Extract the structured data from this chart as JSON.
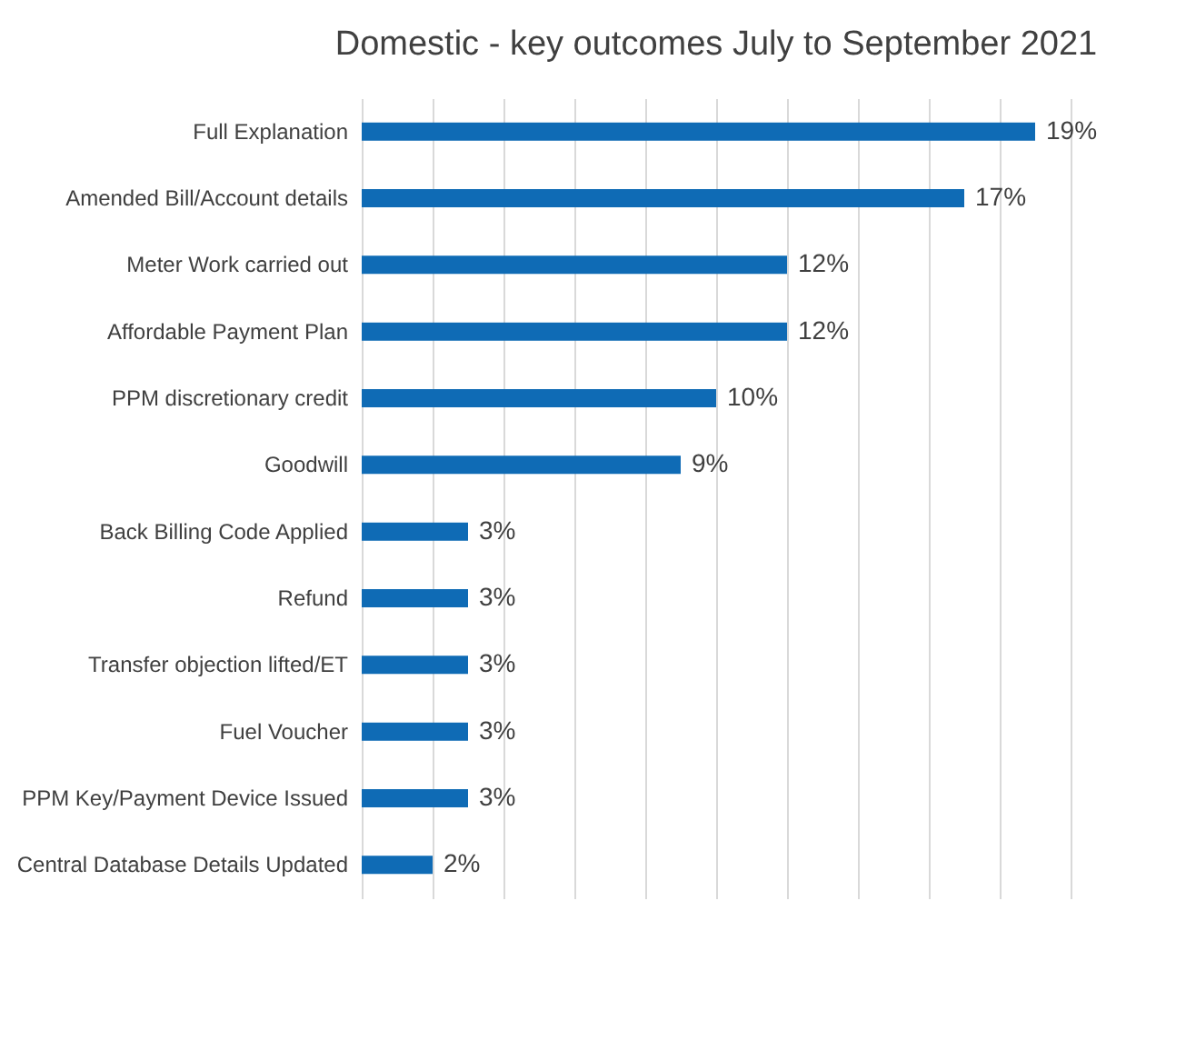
{
  "chart_data": {
    "type": "bar",
    "orientation": "horizontal",
    "title": "Domestic - key outcomes July to September 2021",
    "categories": [
      "Full Explanation",
      "Amended Bill/Account details",
      "Meter Work carried out",
      "Affordable Payment Plan",
      "PPM discretionary credit",
      "Goodwill",
      "Back Billing Code Applied",
      "Refund",
      "Transfer objection lifted/ET",
      "Fuel Voucher",
      "PPM Key/Payment Device Issued",
      "Central Database Details Updated"
    ],
    "values": [
      19,
      17,
      12,
      12,
      10,
      9,
      3,
      3,
      3,
      3,
      3,
      2
    ],
    "value_labels": [
      "19%",
      "17%",
      "12%",
      "12%",
      "10%",
      "9%",
      "3%",
      "3%",
      "3%",
      "3%",
      "3%",
      "2%"
    ],
    "color": "#0f6bb5",
    "xlim": [
      0,
      20
    ],
    "grid": "x",
    "tick_labels": "y"
  }
}
